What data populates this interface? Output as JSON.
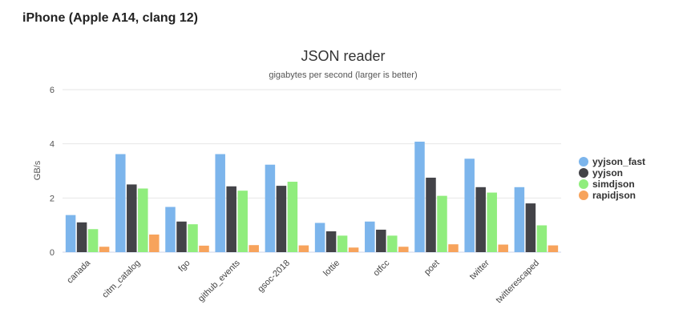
{
  "heading": "iPhone (Apple A14, clang 12)",
  "chart_data": {
    "type": "bar",
    "title": "JSON reader",
    "subtitle": "gigabytes per second (larger is better)",
    "xlabel": "",
    "ylabel": "GB/s",
    "ylim": [
      0,
      6
    ],
    "yticks": [
      "0",
      "2",
      "4",
      "6"
    ],
    "grid": true,
    "legend_position": "right",
    "categories": [
      "canada",
      "citm_catalog",
      "fgo",
      "github_events",
      "gsoc-2018",
      "lottie",
      "otfcc",
      "poet",
      "twitter",
      "twitterescaped"
    ],
    "series": [
      {
        "name": "yyjson_fast",
        "color": "#7cb5ec",
        "values": [
          1.37,
          3.62,
          1.67,
          3.62,
          3.23,
          1.08,
          1.13,
          4.08,
          3.45,
          2.4
        ]
      },
      {
        "name": "yyjson",
        "color": "#434348",
        "values": [
          1.1,
          2.5,
          1.13,
          2.43,
          2.45,
          0.77,
          0.83,
          2.75,
          2.4,
          1.8
        ]
      },
      {
        "name": "simdjson",
        "color": "#90ed7d",
        "values": [
          0.85,
          2.35,
          1.03,
          2.27,
          2.6,
          0.61,
          0.61,
          2.08,
          2.2,
          0.99
        ]
      },
      {
        "name": "rapidjson",
        "color": "#f7a35c",
        "values": [
          0.2,
          0.65,
          0.24,
          0.26,
          0.25,
          0.17,
          0.2,
          0.29,
          0.28,
          0.25
        ]
      }
    ]
  }
}
